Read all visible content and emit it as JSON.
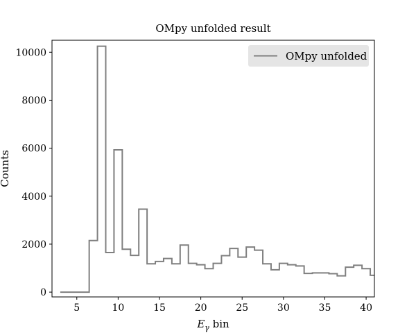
{
  "chart_data": {
    "type": "line",
    "drawstyle": "steps-mid",
    "title": "OMpy unfolded result",
    "xlabel": "E",
    "xlabel_sub": "γ",
    "xlabel_suffix": " bin",
    "ylabel": "Counts",
    "xlim": [
      2,
      41
    ],
    "ylim": [
      -200,
      10500
    ],
    "xticks": [
      5,
      10,
      15,
      20,
      25,
      30,
      35,
      40
    ],
    "yticks": [
      0,
      2000,
      4000,
      6000,
      8000,
      10000
    ],
    "legend_position": "top-right",
    "grid": false,
    "series": [
      {
        "name": "OMpy unfolded",
        "color": "#7f7f7f",
        "x": [
          3,
          4,
          5,
          6,
          7,
          8,
          9,
          10,
          11,
          12,
          13,
          14,
          15,
          16,
          17,
          18,
          19,
          20,
          21,
          22,
          23,
          24,
          25,
          26,
          27,
          28,
          29,
          30,
          31,
          32,
          33,
          34,
          35,
          36,
          37,
          38,
          39,
          40,
          41
        ],
        "y": [
          0,
          0,
          0,
          0,
          2150,
          10250,
          1650,
          5930,
          1790,
          1530,
          3460,
          1180,
          1280,
          1400,
          1180,
          1960,
          1200,
          1140,
          980,
          1200,
          1520,
          1820,
          1460,
          1880,
          1750,
          1180,
          930,
          1200,
          1140,
          1090,
          780,
          800,
          800,
          770,
          680,
          1040,
          1120,
          980,
          700
        ]
      }
    ]
  }
}
